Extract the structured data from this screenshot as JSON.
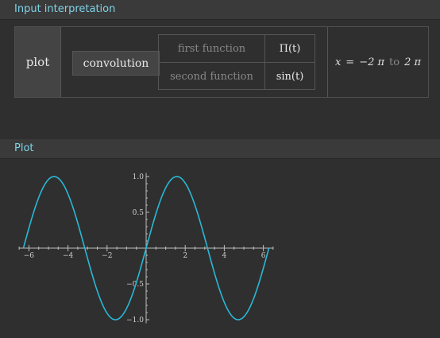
{
  "pods": {
    "input_title": "Input interpretation",
    "plot_title": "Plot"
  },
  "interpretation": {
    "command": "plot",
    "operation": "convolution",
    "first_label": "first function",
    "first_value": "Π(t)",
    "second_label": "second function",
    "second_value": "sin(t)",
    "range_var": "x",
    "range_eq": "=",
    "range_from": "−2 π",
    "range_to_word": "to",
    "range_to": "2 π"
  },
  "chart_data": {
    "type": "line",
    "function": "sin(x)",
    "xlim": [
      -6.5,
      6.5
    ],
    "ylim": [
      -1.05,
      1.05
    ],
    "x_range": [
      -6.283,
      6.283
    ],
    "xticks": [
      -6,
      -4,
      -2,
      2,
      4,
      6
    ],
    "xtick_labels": [
      "−6",
      "−4",
      "−2",
      "2",
      "4",
      "6"
    ],
    "yticks": [
      1.0,
      0.5,
      -0.5,
      -1.0
    ],
    "ytick_labels": [
      "1.0",
      "0.5",
      "−0.5",
      "−1.0"
    ],
    "grid": false,
    "line_color": "#29b8d6",
    "series": [
      {
        "x": [
          -6.283,
          -5.498,
          -4.712,
          -3.927,
          -3.142,
          -2.356,
          -1.571,
          -0.785,
          0,
          0.785,
          1.571,
          2.356,
          3.142,
          3.927,
          4.712,
          5.498,
          6.283
        ],
        "values": [
          0,
          0.707,
          1,
          0.707,
          0,
          -0.707,
          -1,
          -0.707,
          0,
          0.707,
          1,
          0.707,
          0,
          -0.707,
          -1,
          -0.707,
          0
        ]
      }
    ]
  }
}
